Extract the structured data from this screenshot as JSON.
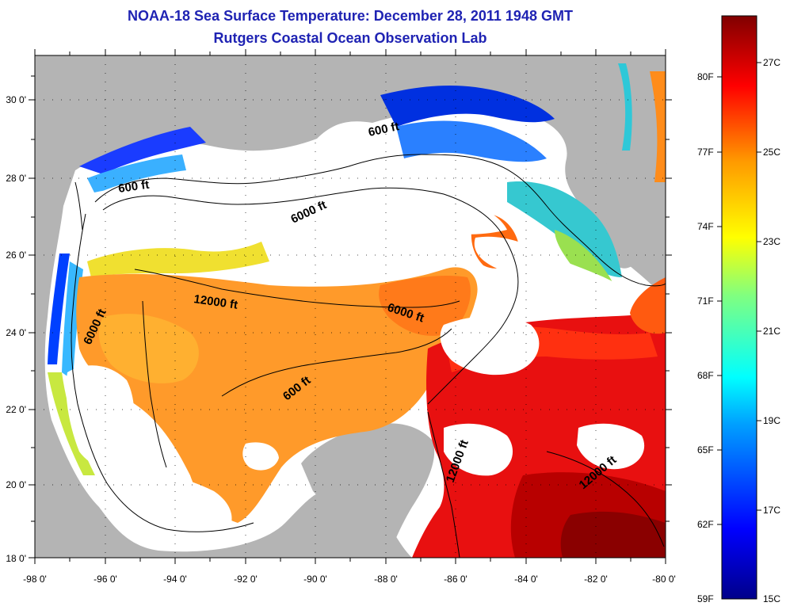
{
  "title": "NOAA-18 Sea Surface Temperature:  December 28, 2011 1948 GMT",
  "subtitle": "Rutgers Coastal Ocean Observation Lab",
  "x_ticks": [
    "-98 0'",
    "-96 0'",
    "-94 0'",
    "-92 0'",
    "-90 0'",
    "-88 0'",
    "-86 0'",
    "-84 0'",
    "-82 0'",
    "-80 0'"
  ],
  "y_ticks": [
    "30 0'",
    "28 0'",
    "26 0'",
    "24 0'",
    "22 0'",
    "20 0'",
    "18 0'"
  ],
  "contour_labels": [
    "600 ft",
    "600 ft",
    "6000 ft",
    "12000 ft",
    "6000 ft",
    "6000 ft",
    "600 ft",
    "12000 ft",
    "12000 ft"
  ],
  "colorbar": {
    "fahrenheit_labels": [
      "80F",
      "77F",
      "74F",
      "71F",
      "68F",
      "65F",
      "62F",
      "59F"
    ],
    "celsius_labels": [
      "27C",
      "25C",
      "23C",
      "21C",
      "19C",
      "17C",
      "15C"
    ]
  },
  "colors": {
    "land": "#b4b4b4",
    "cloud": "#ffffff",
    "title": "#1f23b3"
  }
}
